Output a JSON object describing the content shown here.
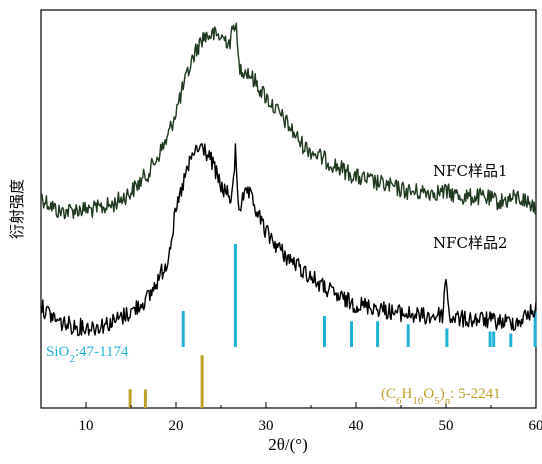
{
  "chart_data": {
    "type": "line",
    "xlabel": "2θ/(°)",
    "ylabel": "衍射强度",
    "xlim": [
      5,
      60
    ],
    "x_ticks": [
      10,
      20,
      30,
      40,
      50,
      60
    ],
    "y_ticks_visible": false,
    "grid": false,
    "series": [
      {
        "name": "NFC样品1",
        "color": "#1f3a1f",
        "points": [
          [
            5,
            0.74
          ],
          [
            7,
            0.8
          ],
          [
            9,
            0.79
          ],
          [
            11,
            0.79
          ],
          [
            13,
            0.77
          ],
          [
            15,
            0.72
          ],
          [
            17,
            0.64
          ],
          [
            19,
            0.51
          ],
          [
            21,
            0.28
          ],
          [
            22,
            0.17
          ],
          [
            23,
            0.1
          ],
          [
            24,
            0.09
          ],
          [
            25,
            0.1
          ],
          [
            26,
            0.12
          ],
          [
            26.6,
            0.03
          ],
          [
            27,
            0.22
          ],
          [
            28,
            0.24
          ],
          [
            30,
            0.34
          ],
          [
            32,
            0.43
          ],
          [
            34,
            0.53
          ],
          [
            36,
            0.58
          ],
          [
            38,
            0.62
          ],
          [
            40,
            0.66
          ],
          [
            42,
            0.68
          ],
          [
            44,
            0.7
          ],
          [
            46,
            0.72
          ],
          [
            48,
            0.72
          ],
          [
            50,
            0.72
          ],
          [
            52,
            0.74
          ],
          [
            54,
            0.74
          ],
          [
            56,
            0.76
          ],
          [
            58,
            0.74
          ],
          [
            60,
            0.78
          ]
        ]
      },
      {
        "name": "NFC样品2",
        "color": "#000000",
        "points": [
          [
            5,
            1.18
          ],
          [
            7,
            1.24
          ],
          [
            9,
            1.26
          ],
          [
            11,
            1.26
          ],
          [
            13,
            1.24
          ],
          [
            15,
            1.2
          ],
          [
            17,
            1.14
          ],
          [
            19,
            1.0
          ],
          [
            20,
            0.8
          ],
          [
            21,
            0.66
          ],
          [
            22,
            0.56
          ],
          [
            23,
            0.54
          ],
          [
            24,
            0.6
          ],
          [
            25,
            0.7
          ],
          [
            26,
            0.74
          ],
          [
            26.6,
            0.55
          ],
          [
            27,
            0.78
          ],
          [
            28,
            0.72
          ],
          [
            29,
            0.8
          ],
          [
            30,
            0.88
          ],
          [
            32,
            0.97
          ],
          [
            34,
            1.03
          ],
          [
            36,
            1.09
          ],
          [
            38,
            1.14
          ],
          [
            40,
            1.17
          ],
          [
            42,
            1.18
          ],
          [
            44,
            1.2
          ],
          [
            46,
            1.21
          ],
          [
            48,
            1.22
          ],
          [
            49.4,
            1.21
          ],
          [
            50,
            1.05
          ],
          [
            50.6,
            1.22
          ],
          [
            52,
            1.23
          ],
          [
            54,
            1.23
          ],
          [
            56,
            1.24
          ],
          [
            58,
            1.24
          ],
          [
            59.5,
            1.2
          ],
          [
            60,
            1.19
          ]
        ]
      }
    ],
    "series_labels": [
      {
        "text": "NFC样品1"
      },
      {
        "text": "NFC样品2"
      }
    ],
    "reference_patterns": [
      {
        "label_parts": [
          "SiO",
          "2",
          ":47-1174"
        ],
        "color": "#1fb2d7",
        "lines": [
          {
            "x": 20.8,
            "h": 0.35
          },
          {
            "x": 26.6,
            "h": 1.0
          },
          {
            "x": 36.5,
            "h": 0.3
          },
          {
            "x": 39.5,
            "h": 0.25
          },
          {
            "x": 42.4,
            "h": 0.25
          },
          {
            "x": 45.8,
            "h": 0.22
          },
          {
            "x": 50.1,
            "h": 0.18
          },
          {
            "x": 54.9,
            "h": 0.15
          },
          {
            "x": 55.3,
            "h": 0.15
          },
          {
            "x": 57.2,
            "h": 0.13
          },
          {
            "x": 59.9,
            "h": 0.35
          }
        ]
      },
      {
        "label_parts": [
          "(C",
          "6",
          "H",
          "10",
          "O",
          "5",
          ")",
          "n",
          ": 5-2241"
        ],
        "color": "#bfa128",
        "lines": [
          {
            "x": 14.9,
            "h": 0.3
          },
          {
            "x": 16.6,
            "h": 0.3
          },
          {
            "x": 22.9,
            "h": 0.85
          }
        ]
      }
    ]
  }
}
